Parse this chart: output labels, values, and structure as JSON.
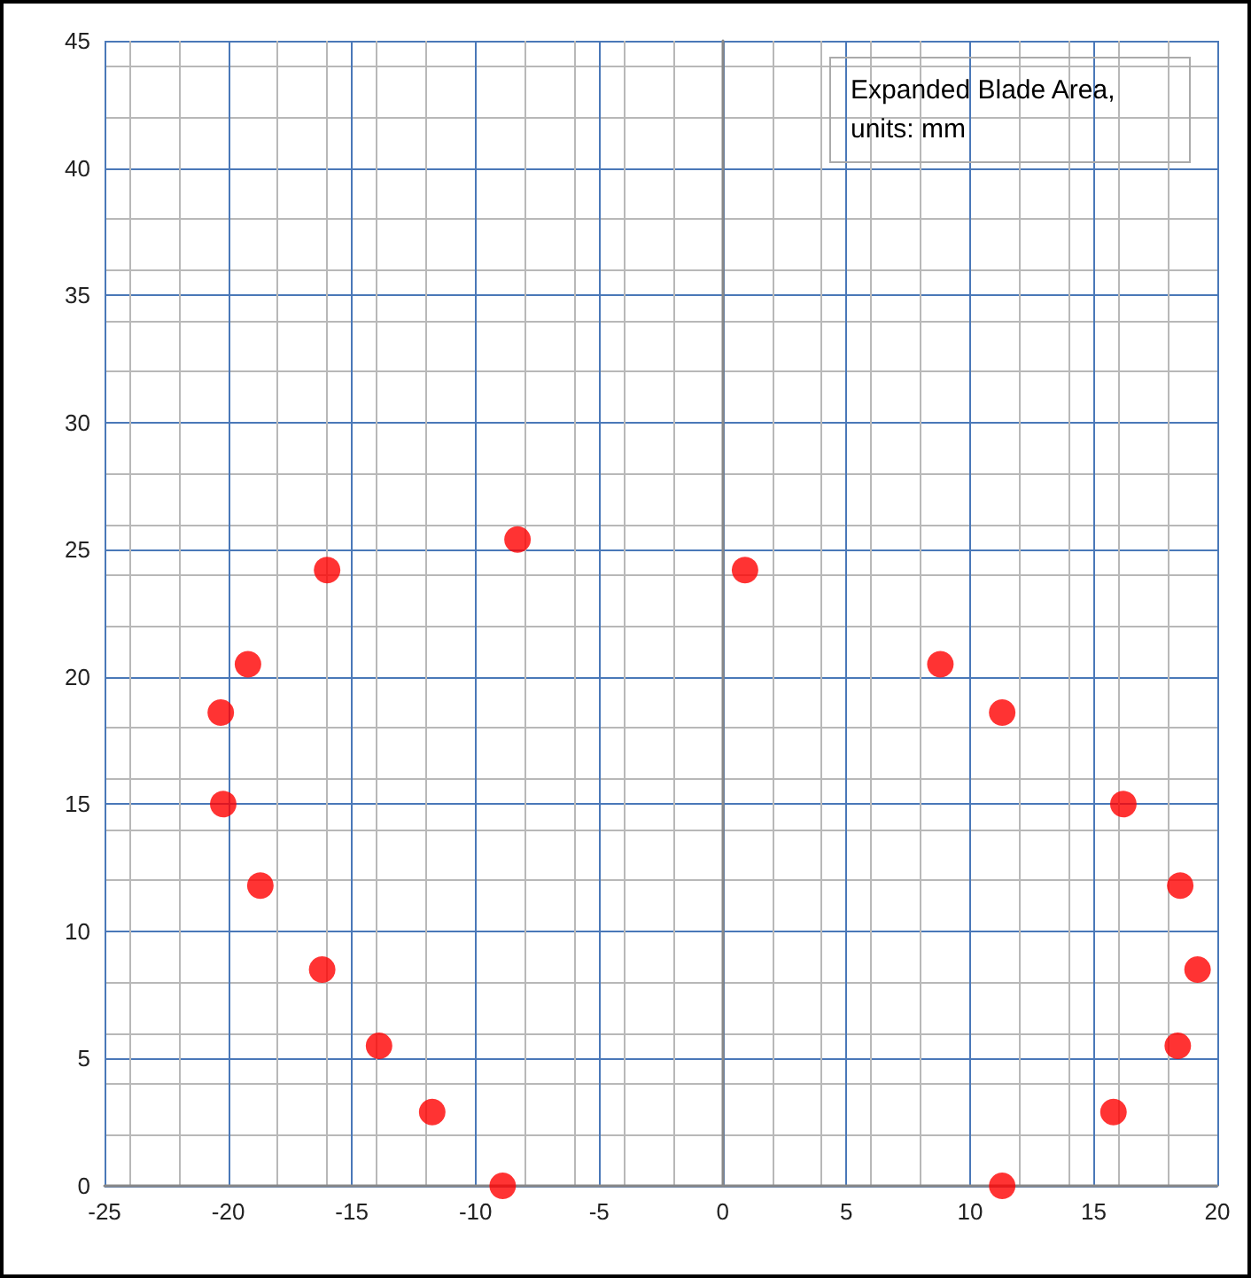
{
  "chart_data": {
    "type": "scatter",
    "title": "Expanded Blade Area, units: mm",
    "x": [
      -8.9,
      -11.75,
      -13.9,
      -16.2,
      -18.7,
      -20.2,
      -20.3,
      -19.2,
      -16.0,
      -8.3,
      0.9,
      8.8,
      11.3,
      16.2,
      18.5,
      19.2,
      18.4,
      15.8,
      11.3
    ],
    "series": [
      {
        "color": "#ff0000",
        "values": [
          0,
          2.9,
          5.5,
          8.5,
          11.8,
          15.0,
          18.6,
          20.5,
          24.2,
          25.4,
          24.2,
          20.5,
          18.6,
          15.0,
          11.8,
          8.5,
          5.5,
          2.9,
          0
        ]
      }
    ],
    "xlim": [
      -25,
      20
    ],
    "xticks": [
      -25,
      -20,
      -15,
      -10,
      -5,
      0,
      5,
      10,
      15,
      20
    ],
    "ylim": [
      0,
      45
    ],
    "yticks": [
      0,
      5,
      10,
      15,
      20,
      25,
      30,
      35,
      40,
      45
    ],
    "grid": true,
    "marker": "circle"
  }
}
